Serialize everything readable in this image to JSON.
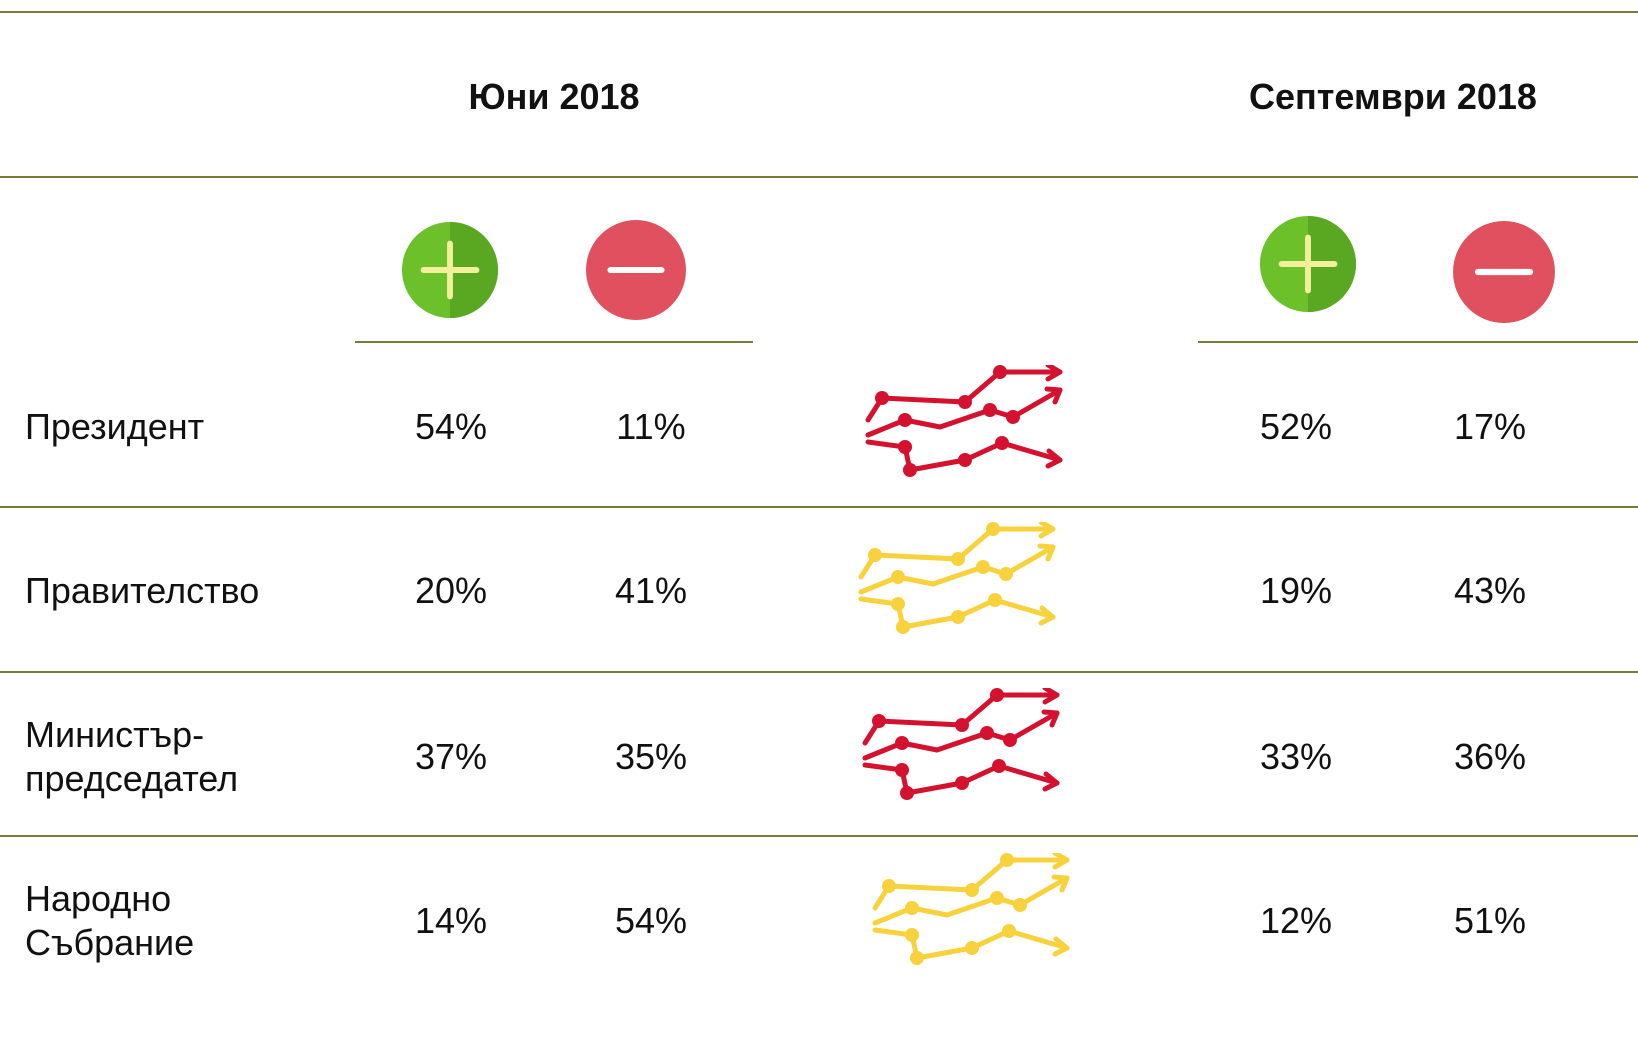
{
  "header": {
    "columns": [
      "Юни 2018",
      "Септември 2018"
    ]
  },
  "table": {
    "rows": [
      [
        "Президент",
        "54%",
        "11%",
        "52%",
        "17%"
      ],
      [
        "Правителство",
        "20%",
        "41%",
        "19%",
        "43%"
      ],
      [
        "Министър-\nпредседател",
        "37%",
        "35%",
        "33%",
        "36%"
      ],
      [
        "Народно\nСъбрание",
        "14%",
        "54%",
        "12%",
        "51%"
      ]
    ]
  }
}
